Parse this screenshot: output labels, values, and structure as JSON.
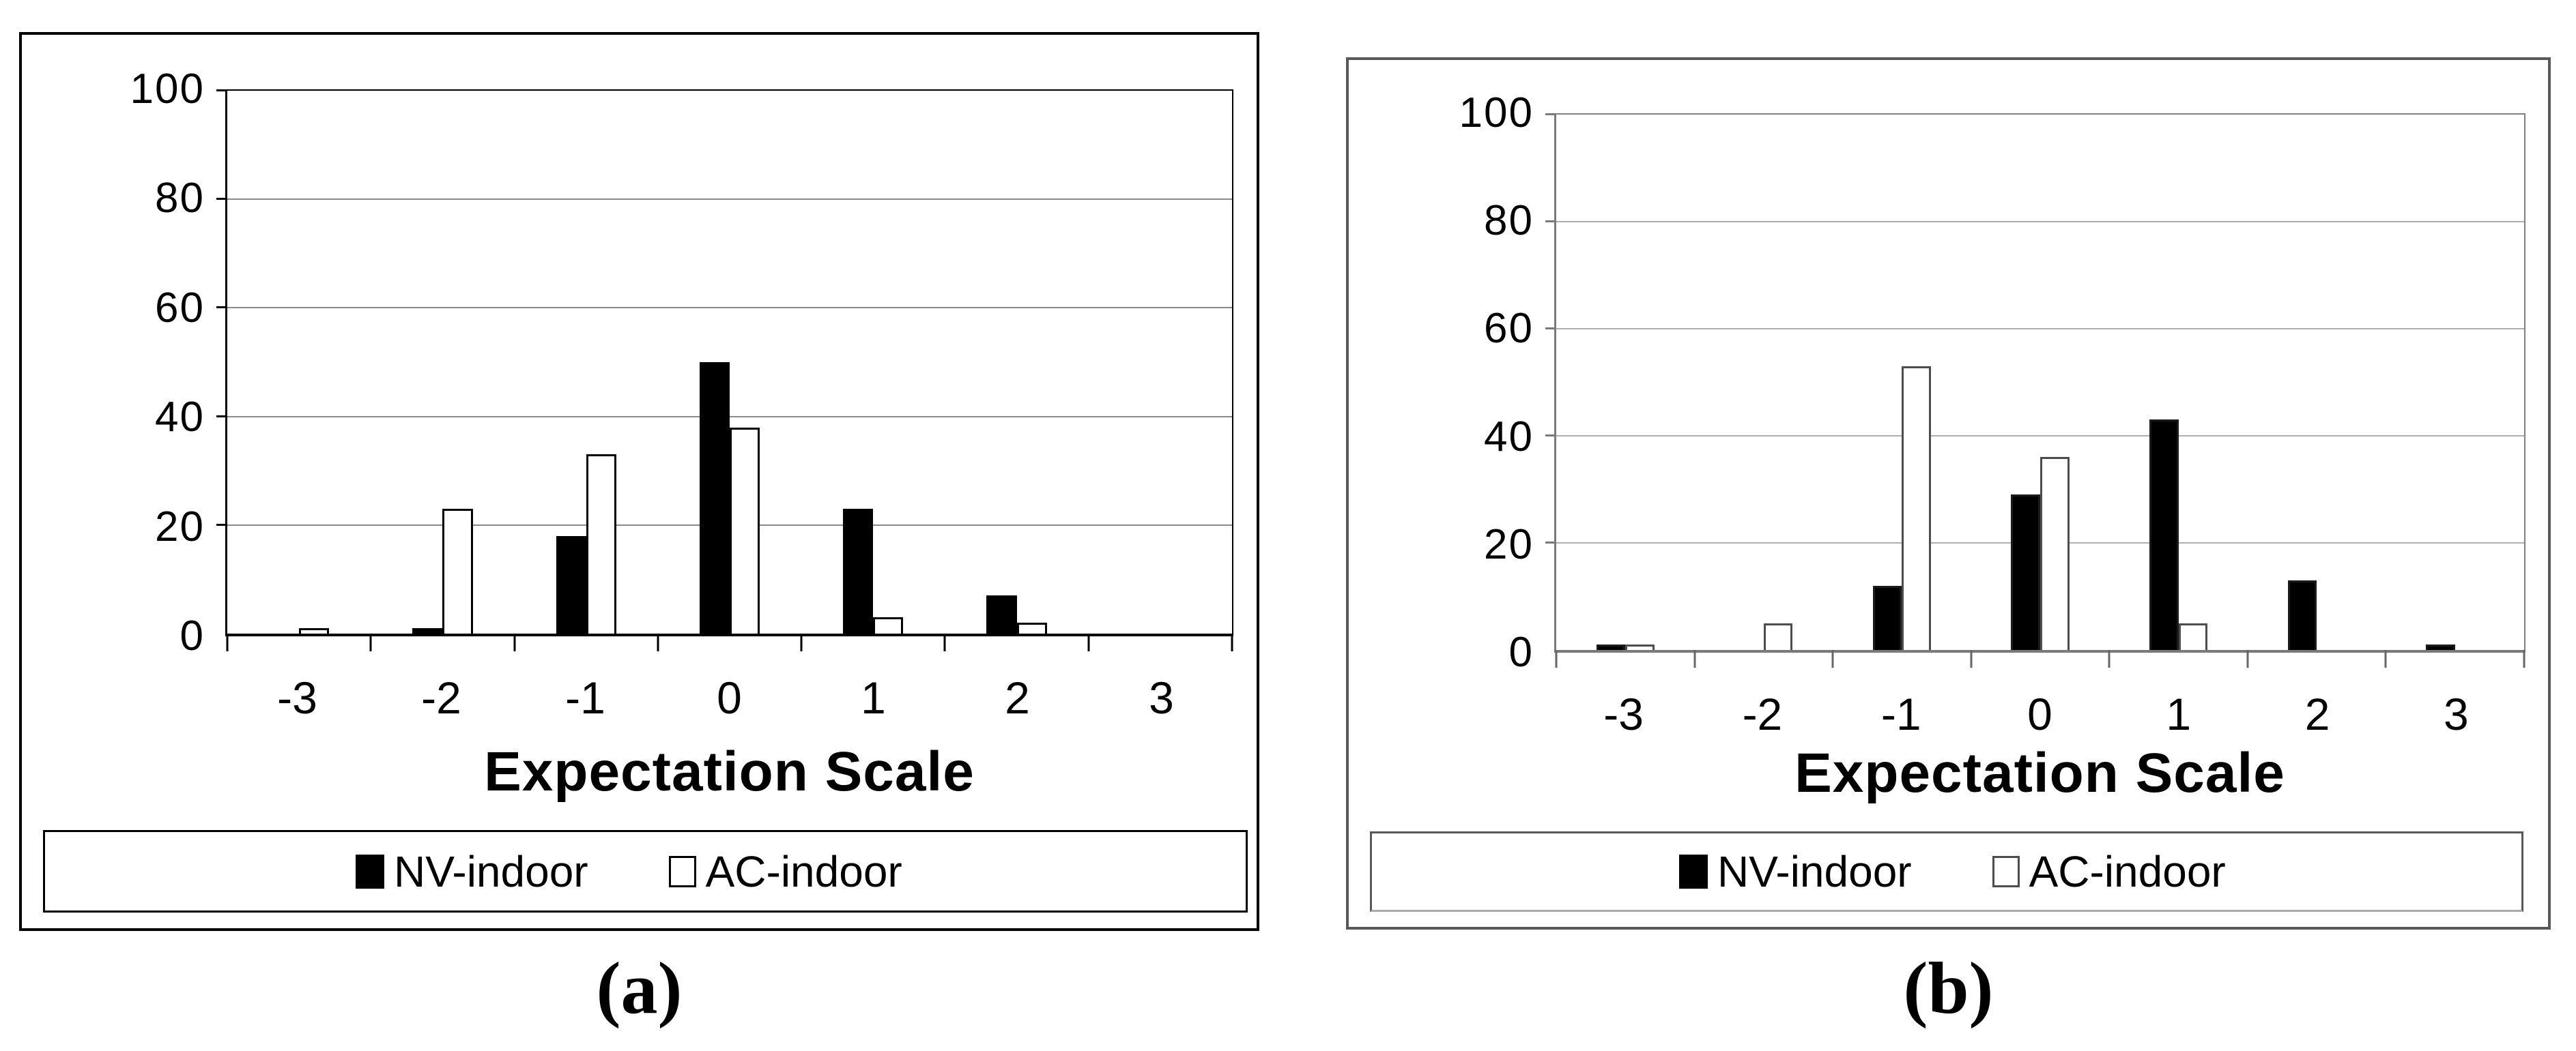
{
  "chart_data": [
    {
      "type": "bar",
      "caption": "(a)",
      "xlabel": "Expectation Scale",
      "ylabel": "",
      "ylim": [
        0,
        100
      ],
      "yticks": [
        0,
        20,
        40,
        60,
        80,
        100
      ],
      "categories": [
        "-3",
        "-2",
        "-1",
        "0",
        "1",
        "2",
        "3"
      ],
      "series": [
        {
          "name": "NV-indoor",
          "values": [
            0,
            1,
            18,
            50,
            23,
            7,
            0
          ],
          "fill": "#000000",
          "border": "#000000"
        },
        {
          "name": "AC-indoor",
          "values": [
            1,
            23,
            33,
            38,
            3,
            2,
            0
          ],
          "fill": "#ffffff",
          "border": "#000000"
        }
      ],
      "legend_position": "bottom",
      "grid": "horizontal",
      "colors": {
        "frame": "#000000",
        "grid": "#8a8a8a",
        "axis": "#000000",
        "tick": "#000000",
        "text": "#000000"
      }
    },
    {
      "type": "bar",
      "caption": "(b)",
      "xlabel": "Expectation Scale",
      "ylabel": "",
      "ylim": [
        0,
        100
      ],
      "yticks": [
        0,
        20,
        40,
        60,
        80,
        100
      ],
      "categories": [
        "-3",
        "-2",
        "-1",
        "0",
        "1",
        "2",
        "3"
      ],
      "series": [
        {
          "name": "NV-indoor",
          "values": [
            1,
            0,
            12,
            29,
            43,
            13,
            1
          ],
          "fill": "#000000",
          "border": "#1a1a1a"
        },
        {
          "name": "AC-indoor",
          "values": [
            1,
            5,
            53,
            36,
            5,
            0,
            0
          ],
          "fill": "#ffffff",
          "border": "#4d4d4d"
        }
      ],
      "legend_position": "bottom",
      "grid": "horizontal",
      "colors": {
        "frame": "#808080",
        "grid": "#aeaeae",
        "axis": "#7a7a7a",
        "tick": "#666666",
        "text": "#000000"
      }
    }
  ]
}
